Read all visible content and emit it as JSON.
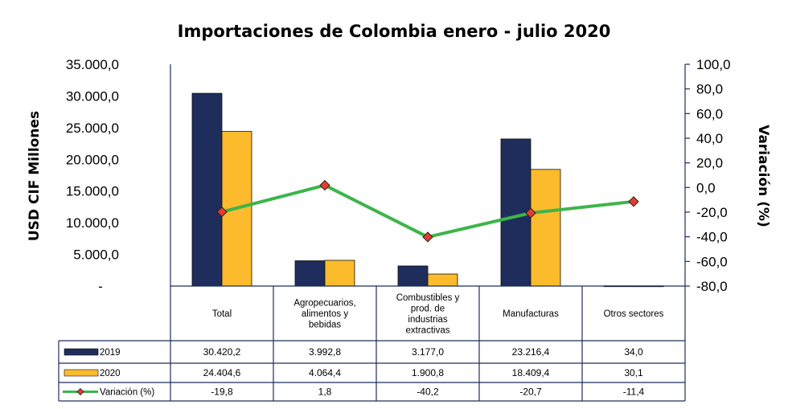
{
  "chart_data": {
    "type": "bar",
    "title": "Importaciones de Colombia enero - julio 2020",
    "ylabel": "USD CIF Millones",
    "y2label": "Variación (%)",
    "ylim": [
      0,
      35000
    ],
    "y2lim": [
      -80,
      100
    ],
    "yticks": [
      "-",
      "5.000,0",
      "10.000,0",
      "15.000,0",
      "20.000,0",
      "25.000,0",
      "30.000,0",
      "35.000,0"
    ],
    "y2ticks": [
      "-80,0",
      "-60,0",
      "-40,0",
      "-20,0",
      "0,0",
      "20,0",
      "40,0",
      "60,0",
      "80,0",
      "100,0"
    ],
    "categories": [
      [
        "Total"
      ],
      [
        "Agropecuarios,",
        "alimentos y",
        "bebidas"
      ],
      [
        "Combustibles y",
        "prod. de",
        "industrias",
        "extractivas"
      ],
      [
        "Manufacturas"
      ],
      [
        "Otros sectores"
      ]
    ],
    "series": [
      {
        "name": "2019",
        "type": "bar",
        "color": "#1f2d5c",
        "values": [
          30420.2,
          3992.8,
          3177.0,
          23216.4,
          34.0
        ],
        "labels": [
          "30.420,2",
          "3.992,8",
          "3.177,0",
          "23.216,4",
          "34,0"
        ]
      },
      {
        "name": "2020",
        "type": "bar",
        "color": "#fbbb2c",
        "values": [
          24404.6,
          4064.4,
          1900.8,
          18409.4,
          30.1
        ],
        "labels": [
          "24.404,6",
          "4.064,4",
          "1.900,8",
          "18.409,4",
          "30,1"
        ]
      },
      {
        "name": "Variación (%)",
        "type": "line",
        "axis": "right",
        "color": "#3cb54a",
        "marker_color": "#e63b2e",
        "values": [
          -19.8,
          1.8,
          -40.2,
          -20.7,
          -11.4
        ],
        "labels": [
          "-19,8",
          "1,8",
          "-40,2",
          "-20,7",
          "-11,4"
        ]
      }
    ],
    "legend": "data-table-left",
    "grid": false
  }
}
